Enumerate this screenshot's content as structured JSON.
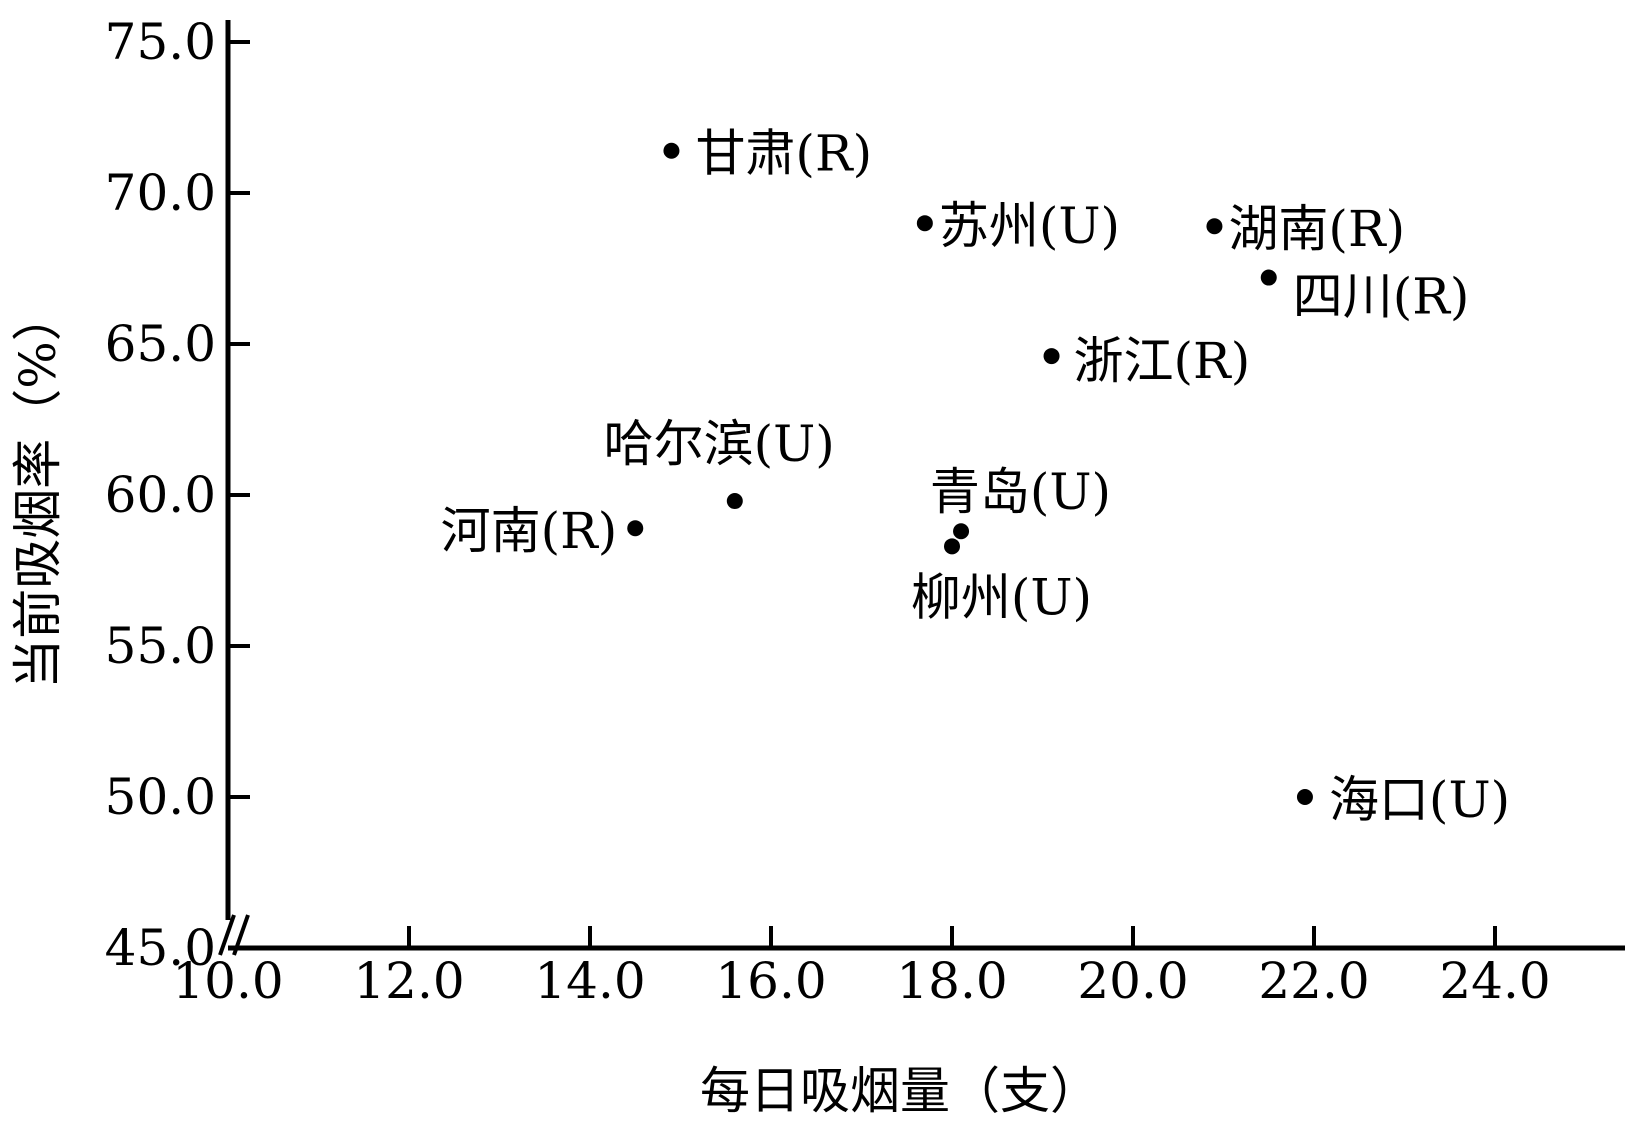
{
  "chart_data": {
    "type": "scatter",
    "xlabel": "每日吸烟量（支）",
    "ylabel": "当前吸烟率（%）",
    "xlim": [
      10.0,
      25.0
    ],
    "ylim": [
      45.0,
      75.0
    ],
    "x_ticks": [
      "10.0",
      "12.0",
      "14.0",
      "16.0",
      "18.0",
      "20.0",
      "22.0",
      "24.0"
    ],
    "y_ticks": [
      "45.0",
      "50.0",
      "55.0",
      "60.0",
      "65.0",
      "70.0",
      "75.0"
    ],
    "grid": false,
    "axis_break": "y",
    "points": [
      {
        "label": "甘肃(R)",
        "x": 14.9,
        "y": 71.4
      },
      {
        "label": "苏州(U)",
        "x": 17.7,
        "y": 69.0
      },
      {
        "label": "湖南(R)",
        "x": 20.9,
        "y": 68.9
      },
      {
        "label": "四川(R)",
        "x": 21.5,
        "y": 67.2
      },
      {
        "label": "浙江(R)",
        "x": 19.1,
        "y": 64.6
      },
      {
        "label": "哈尔滨(U)",
        "x": 15.6,
        "y": 59.8
      },
      {
        "label": "河南(R)",
        "x": 14.5,
        "y": 58.9
      },
      {
        "label": "青岛(U)",
        "x": 18.1,
        "y": 58.8
      },
      {
        "label": "柳州(U)",
        "x": 18.0,
        "y": 58.3
      },
      {
        "label": "海口(U)",
        "x": 21.9,
        "y": 50.0
      }
    ]
  }
}
